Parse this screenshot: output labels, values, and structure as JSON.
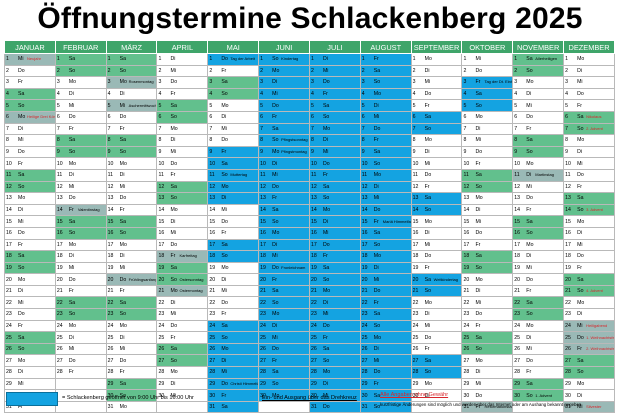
{
  "title": "Öffnungstermine Schlackenberg 2025",
  "months": [
    "JANUAR",
    "FEBRUAR",
    "MÄRZ",
    "APRIL",
    "MAI",
    "JUNI",
    "JULI",
    "AUGUST",
    "SEPTEMBER",
    "OKTOBER",
    "NOVEMBER",
    "DEZEMBER"
  ],
  "month_lengths": [
    31,
    28,
    31,
    30,
    31,
    30,
    31,
    31,
    30,
    31,
    30,
    31
  ],
  "first_weekday": [
    2,
    5,
    5,
    1,
    3,
    6,
    1,
    4,
    0,
    2,
    5,
    0
  ],
  "weekday_names": [
    "Mo",
    "Di",
    "Mi",
    "Do",
    "Fr",
    "Sa",
    "So"
  ],
  "colors": {
    "header": "#3fa56a",
    "weekend": "#62c08d",
    "holiday": "#9ab9b6",
    "open": "#14a3e1"
  },
  "holidays": {
    "0": {
      "1": "Neujahr",
      "6": "Heilige Drei Könige"
    },
    "2": {
      "3": "Rosenmontag",
      "5": "Aschermittwoch",
      "20": "Frühlingsanfang"
    },
    "1": {
      "14": "Valentinstag"
    },
    "3": {
      "18": "Karfreitag",
      "20": "Ostersonntag",
      "21": "Ostermontag"
    },
    "4": {
      "1": "Tag der Arbeit",
      "11": "Muttertag",
      "29": "Christi Himmelfahrt"
    },
    "5": {
      "1": "Kindertag",
      "8": "Pfingstsonntag",
      "9": "Pfingstmontag",
      "19": "Fronleichnam"
    },
    "7": {
      "15": "Mariä Himmelfahrt"
    },
    "8": {
      "20": "Weltkindertag"
    },
    "9": {
      "3": "Tag der Dt. Einheit",
      "31": "Reformationstag"
    },
    "10": {
      "1": "Allerheiligen",
      "11": "Martinstag",
      "30": "1. Advent"
    },
    "11": {
      "6": "Nikolaus",
      "7": "2. Advent",
      "14": "3. Advent",
      "21": "4. Advent",
      "24": "Heiligabend",
      "25": "1. Weihnachtsfeiertag",
      "26": "2. Weihnachtsfeiertag",
      "31": "Silvester"
    }
  },
  "open_days": {
    "4": [
      1,
      9,
      10,
      11,
      12,
      13,
      17,
      18,
      24,
      25,
      26,
      27,
      28,
      29,
      30,
      31
    ],
    "5": [
      1,
      2,
      3,
      4,
      5,
      6,
      7,
      8,
      9,
      10,
      11,
      12,
      13,
      14,
      15,
      16,
      17,
      18,
      19,
      20,
      21,
      22,
      23,
      24,
      25,
      26,
      27,
      28,
      29,
      30
    ],
    "6": [
      1,
      2,
      3,
      4,
      5,
      6,
      7,
      8,
      9,
      10,
      11,
      12,
      13,
      14,
      15,
      16,
      17,
      18,
      19,
      20,
      21,
      22,
      23,
      24,
      25,
      26,
      27,
      28,
      29,
      30,
      31
    ],
    "7": [
      1,
      2,
      3,
      4,
      5,
      6,
      7,
      8,
      9,
      10,
      11,
      12,
      13,
      14,
      15,
      16,
      17,
      18,
      19,
      20,
      21,
      22,
      23,
      24,
      25,
      26,
      27,
      28,
      29,
      30,
      31
    ],
    "8": [
      6,
      7,
      13,
      14,
      20,
      21,
      27,
      28
    ],
    "9": [
      3,
      4,
      5
    ]
  },
  "legend": {
    "open_text": "= Schlackenberg geöffnet von 9:00 Uhr bis 16:00 Uhr",
    "entry_text": "Ein- und Ausgang über das Drehkreuz",
    "notice_title": "Alle Angaben ohne Gewähr",
    "notice_text": "kurzfristige Änderungen sind möglich und werden über das Internet oder am Aushang bekannt gegeben"
  }
}
